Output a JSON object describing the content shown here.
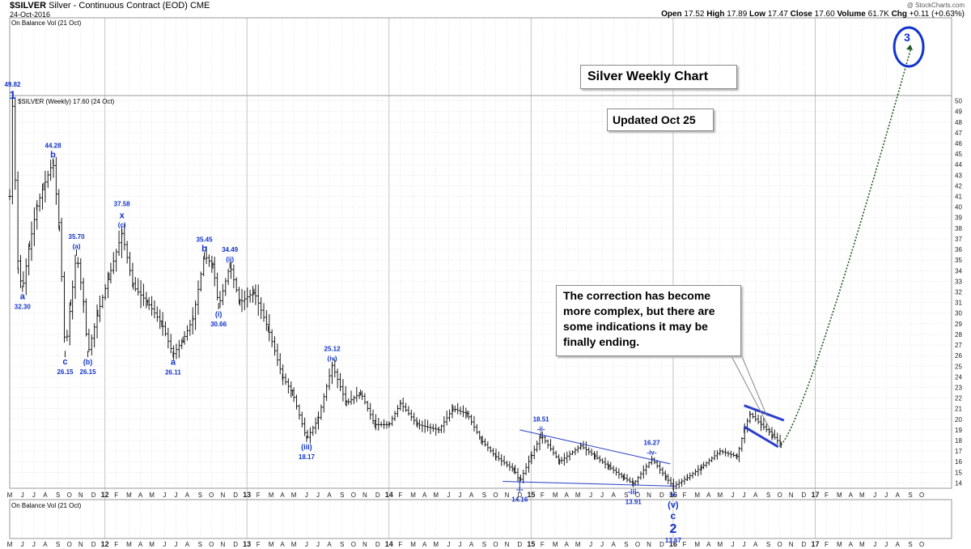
{
  "header": {
    "symbol": "$SILVER",
    "description": "Silver - Continuous Contract (EOD)",
    "exchange": "CME",
    "date": "24-Oct-2016",
    "watermark": "@ StockCharts.com",
    "quote": {
      "open_label": "Open",
      "open": "17.52",
      "high_label": "High",
      "high": "17.89",
      "low_label": "Low",
      "low": "17.47",
      "close_label": "Close",
      "close": "17.60",
      "volume_label": "Volume",
      "volume": "61.7K",
      "chg_label": "Chg",
      "chg": "+0.11 (+0.63%)"
    }
  },
  "annotations": {
    "title": "Silver Weekly Chart",
    "updated": "Updated Oct 25",
    "comment_lines": [
      "The correction has become",
      "more complex, but there are",
      "some indications it may be",
      "finally ending."
    ]
  },
  "chart_data": {
    "type": "ohlc",
    "panels": {
      "top_indicator": "On Balance Vol (21 Oct)",
      "price_legend": "$SILVER (Weekly) 17.60 (24 Oct)",
      "bottom_indicator": "On Balance Vol (21 Oct)"
    },
    "y_axis": {
      "min": 13.5,
      "max": 50.5,
      "ticks": [
        14,
        15,
        16,
        17,
        18,
        19,
        20,
        21,
        22,
        23,
        24,
        25,
        26,
        27,
        28,
        29,
        30,
        31,
        32,
        33,
        34,
        35,
        36,
        37,
        38,
        39,
        40,
        41,
        42,
        43,
        44,
        45,
        46,
        47,
        48,
        49,
        50
      ]
    },
    "x_axis": {
      "start": 2011.33,
      "end": 2017.96,
      "month_labels": [
        {
          "t": 2011.33,
          "label": "M"
        },
        {
          "t": 2011.42,
          "label": "J"
        },
        {
          "t": 2011.5,
          "label": "J"
        },
        {
          "t": 2011.58,
          "label": "A"
        },
        {
          "t": 2011.67,
          "label": "S"
        },
        {
          "t": 2011.75,
          "label": "O"
        },
        {
          "t": 2011.83,
          "label": "N"
        },
        {
          "t": 2011.92,
          "label": "D"
        },
        {
          "t": 2012.0,
          "label": "12"
        },
        {
          "t": 2012.08,
          "label": "F"
        },
        {
          "t": 2012.17,
          "label": "M"
        },
        {
          "t": 2012.25,
          "label": "A"
        },
        {
          "t": 2012.33,
          "label": "M"
        },
        {
          "t": 2012.42,
          "label": "J"
        },
        {
          "t": 2012.5,
          "label": "J"
        },
        {
          "t": 2012.58,
          "label": "A"
        },
        {
          "t": 2012.67,
          "label": "S"
        },
        {
          "t": 2012.75,
          "label": "O"
        },
        {
          "t": 2012.83,
          "label": "N"
        },
        {
          "t": 2012.92,
          "label": "D"
        },
        {
          "t": 2013.0,
          "label": "13"
        },
        {
          "t": 2013.08,
          "label": "F"
        },
        {
          "t": 2013.17,
          "label": "M"
        },
        {
          "t": 2013.25,
          "label": "A"
        },
        {
          "t": 2013.33,
          "label": "M"
        },
        {
          "t": 2013.42,
          "label": "J"
        },
        {
          "t": 2013.5,
          "label": "J"
        },
        {
          "t": 2013.58,
          "label": "A"
        },
        {
          "t": 2013.67,
          "label": "S"
        },
        {
          "t": 2013.75,
          "label": "O"
        },
        {
          "t": 2013.83,
          "label": "N"
        },
        {
          "t": 2013.92,
          "label": "D"
        },
        {
          "t": 2014.0,
          "label": "14"
        },
        {
          "t": 2014.08,
          "label": "F"
        },
        {
          "t": 2014.17,
          "label": "M"
        },
        {
          "t": 2014.25,
          "label": "A"
        },
        {
          "t": 2014.33,
          "label": "M"
        },
        {
          "t": 2014.42,
          "label": "J"
        },
        {
          "t": 2014.5,
          "label": "J"
        },
        {
          "t": 2014.58,
          "label": "A"
        },
        {
          "t": 2014.67,
          "label": "S"
        },
        {
          "t": 2014.75,
          "label": "O"
        },
        {
          "t": 2014.83,
          "label": "N"
        },
        {
          "t": 2014.92,
          "label": "D"
        },
        {
          "t": 2015.0,
          "label": "15"
        },
        {
          "t": 2015.08,
          "label": "F"
        },
        {
          "t": 2015.17,
          "label": "M"
        },
        {
          "t": 2015.25,
          "label": "A"
        },
        {
          "t": 2015.33,
          "label": "M"
        },
        {
          "t": 2015.42,
          "label": "J"
        },
        {
          "t": 2015.5,
          "label": "J"
        },
        {
          "t": 2015.58,
          "label": "A"
        },
        {
          "t": 2015.67,
          "label": "S"
        },
        {
          "t": 2015.75,
          "label": "O"
        },
        {
          "t": 2015.83,
          "label": "N"
        },
        {
          "t": 2015.92,
          "label": "D"
        },
        {
          "t": 2016.0,
          "label": "16"
        },
        {
          "t": 2016.08,
          "label": "F"
        },
        {
          "t": 2016.17,
          "label": "M"
        },
        {
          "t": 2016.25,
          "label": "A"
        },
        {
          "t": 2016.33,
          "label": "M"
        },
        {
          "t": 2016.42,
          "label": "J"
        },
        {
          "t": 2016.5,
          "label": "J"
        },
        {
          "t": 2016.58,
          "label": "A"
        },
        {
          "t": 2016.67,
          "label": "S"
        },
        {
          "t": 2016.75,
          "label": "O"
        },
        {
          "t": 2016.83,
          "label": "N"
        },
        {
          "t": 2016.92,
          "label": "D"
        },
        {
          "t": 2017.0,
          "label": "17"
        },
        {
          "t": 2017.08,
          "label": "F"
        },
        {
          "t": 2017.17,
          "label": "M"
        },
        {
          "t": 2017.25,
          "label": "A"
        },
        {
          "t": 2017.33,
          "label": "M"
        },
        {
          "t": 2017.42,
          "label": "J"
        },
        {
          "t": 2017.5,
          "label": "J"
        },
        {
          "t": 2017.58,
          "label": "A"
        },
        {
          "t": 2017.67,
          "label": "S"
        },
        {
          "t": 2017.75,
          "label": "O"
        }
      ]
    },
    "price_path": [
      {
        "t": 2011.33,
        "price": 41.0
      },
      {
        "t": 2011.35,
        "price": 49.82
      },
      {
        "t": 2011.39,
        "price": 34.0
      },
      {
        "t": 2011.42,
        "price": 32.3
      },
      {
        "t": 2011.47,
        "price": 36.5
      },
      {
        "t": 2011.52,
        "price": 40.0
      },
      {
        "t": 2011.57,
        "price": 42.0
      },
      {
        "t": 2011.635,
        "price": 44.28
      },
      {
        "t": 2011.68,
        "price": 38.0
      },
      {
        "t": 2011.72,
        "price": 26.15
      },
      {
        "t": 2011.76,
        "price": 31.0
      },
      {
        "t": 2011.8,
        "price": 35.7
      },
      {
        "t": 2011.85,
        "price": 31.0
      },
      {
        "t": 2011.88,
        "price": 26.15
      },
      {
        "t": 2011.95,
        "price": 30.0
      },
      {
        "t": 2012.03,
        "price": 33.5
      },
      {
        "t": 2012.12,
        "price": 37.58
      },
      {
        "t": 2012.2,
        "price": 32.5
      },
      {
        "t": 2012.3,
        "price": 31.0
      },
      {
        "t": 2012.4,
        "price": 29.0
      },
      {
        "t": 2012.48,
        "price": 26.11
      },
      {
        "t": 2012.55,
        "price": 27.5
      },
      {
        "t": 2012.62,
        "price": 29.5
      },
      {
        "t": 2012.7,
        "price": 35.45
      },
      {
        "t": 2012.76,
        "price": 34.5
      },
      {
        "t": 2012.8,
        "price": 30.66
      },
      {
        "t": 2012.88,
        "price": 34.49
      },
      {
        "t": 2012.95,
        "price": 31.0
      },
      {
        "t": 2013.05,
        "price": 32.0
      },
      {
        "t": 2013.15,
        "price": 28.5
      },
      {
        "t": 2013.25,
        "price": 24.0
      },
      {
        "t": 2013.32,
        "price": 22.5
      },
      {
        "t": 2013.42,
        "price": 18.17
      },
      {
        "t": 2013.5,
        "price": 20.0
      },
      {
        "t": 2013.6,
        "price": 25.12
      },
      {
        "t": 2013.7,
        "price": 21.5
      },
      {
        "t": 2013.8,
        "price": 22.5
      },
      {
        "t": 2013.9,
        "price": 19.5
      },
      {
        "t": 2014.0,
        "price": 19.5
      },
      {
        "t": 2014.08,
        "price": 21.5
      },
      {
        "t": 2014.2,
        "price": 19.5
      },
      {
        "t": 2014.35,
        "price": 19.0
      },
      {
        "t": 2014.45,
        "price": 21.0
      },
      {
        "t": 2014.55,
        "price": 20.5
      },
      {
        "t": 2014.65,
        "price": 18.0
      },
      {
        "t": 2014.75,
        "price": 16.5
      },
      {
        "t": 2014.88,
        "price": 15.2
      },
      {
        "t": 2014.92,
        "price": 14.16
      },
      {
        "t": 2015.0,
        "price": 16.5
      },
      {
        "t": 2015.07,
        "price": 18.51
      },
      {
        "t": 2015.2,
        "price": 16.0
      },
      {
        "t": 2015.35,
        "price": 17.5
      },
      {
        "t": 2015.45,
        "price": 16.5
      },
      {
        "t": 2015.55,
        "price": 15.5
      },
      {
        "t": 2015.65,
        "price": 14.5
      },
      {
        "t": 2015.72,
        "price": 13.91
      },
      {
        "t": 2015.85,
        "price": 16.27
      },
      {
        "t": 2015.95,
        "price": 14.5
      },
      {
        "t": 2016.0,
        "price": 13.67
      },
      {
        "t": 2016.1,
        "price": 14.5
      },
      {
        "t": 2016.2,
        "price": 15.5
      },
      {
        "t": 2016.33,
        "price": 17.0
      },
      {
        "t": 2016.45,
        "price": 16.5
      },
      {
        "t": 2016.5,
        "price": 19.0
      },
      {
        "t": 2016.54,
        "price": 20.5
      },
      {
        "t": 2016.62,
        "price": 19.5
      },
      {
        "t": 2016.7,
        "price": 18.5
      },
      {
        "t": 2016.76,
        "price": 17.6
      }
    ],
    "wave_labels": [
      {
        "t": 2011.35,
        "price": 49.82,
        "value": "49.82",
        "wave": "1",
        "pos": "above",
        "big": true
      },
      {
        "t": 2011.42,
        "price": 32.3,
        "value": "32.30",
        "wave": "a",
        "pos": "below"
      },
      {
        "t": 2011.635,
        "price": 44.28,
        "value": "44.28",
        "wave": "b",
        "pos": "above"
      },
      {
        "t": 2011.72,
        "price": 26.15,
        "value": "26.15",
        "wave": "c",
        "pos": "below"
      },
      {
        "t": 2011.8,
        "price": 35.7,
        "value": "35.70",
        "wave": "(a)",
        "pos": "above"
      },
      {
        "t": 2011.88,
        "price": 26.15,
        "value": "26.15",
        "wave": "(b)",
        "pos": "below"
      },
      {
        "t": 2012.12,
        "price": 37.58,
        "value": "37.58",
        "wave": "(c)",
        "wave2": "x",
        "pos": "above"
      },
      {
        "t": 2012.48,
        "price": 26.11,
        "value": "26.11",
        "wave": "a",
        "pos": "below"
      },
      {
        "t": 2012.7,
        "price": 35.45,
        "value": "35.45",
        "wave": "b",
        "pos": "above"
      },
      {
        "t": 2012.8,
        "price": 30.66,
        "value": "30.66",
        "wave": "(i)",
        "pos": "below"
      },
      {
        "t": 2012.88,
        "price": 34.49,
        "value": "34.49",
        "wave": "(ii)",
        "pos": "above"
      },
      {
        "t": 2013.42,
        "price": 18.17,
        "value": "18.17",
        "wave": "(iii)",
        "pos": "below"
      },
      {
        "t": 2013.6,
        "price": 25.12,
        "value": "25.12",
        "wave": "(iv)",
        "pos": "above"
      },
      {
        "t": 2014.92,
        "price": 14.16,
        "value": "14.16",
        "wave": "-i-",
        "pos": "below"
      },
      {
        "t": 2015.07,
        "price": 18.51,
        "value": "18.51",
        "wave": "-ii-",
        "pos": "above"
      },
      {
        "t": 2015.72,
        "price": 13.91,
        "value": "13.91",
        "wave": "-iii-",
        "pos": "below"
      },
      {
        "t": 2015.85,
        "price": 16.27,
        "value": "16.27",
        "wave": "-iv-",
        "pos": "above"
      },
      {
        "t": 2016.0,
        "price": 13.67,
        "value": "13.67",
        "wave": "-v-",
        "wave_stack": [
          "(v)",
          "c",
          "2"
        ],
        "pos": "below"
      }
    ],
    "target_label": "3",
    "colors": {
      "bars": "#1a1a1a",
      "annotation_blue": "#1133cc",
      "trendline_blue": "#2a3ecc",
      "projection_green": "#1e5a1e",
      "grid": "#d4d4d4"
    }
  }
}
